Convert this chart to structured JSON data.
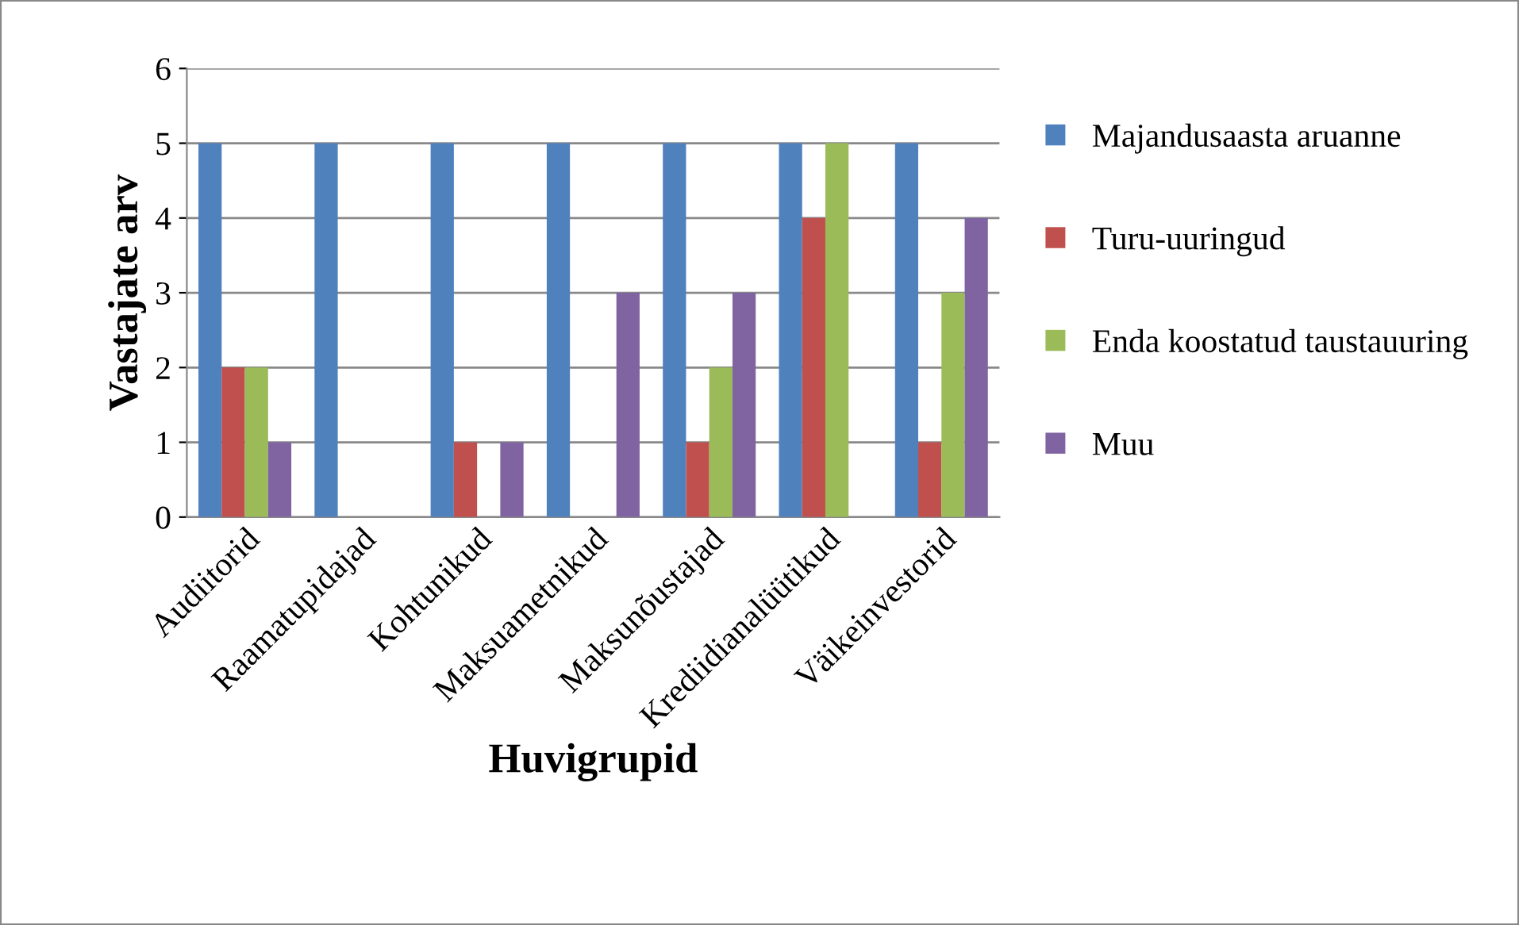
{
  "chart_data": {
    "type": "bar",
    "xlabel": "Huvigrupid",
    "ylabel": "Vastajate arv",
    "categories": [
      "Audiitorid",
      "Raamatupidajad",
      "Kohtunikud",
      "Maksuametnikud",
      "Maksunõustajad",
      "Krediidianalüütikud",
      "Väikeinvestorid"
    ],
    "series": [
      {
        "name": "Majandusaasta aruanne",
        "color": "#4f81bd",
        "values": [
          5,
          5,
          5,
          5,
          5,
          5,
          5
        ]
      },
      {
        "name": "Turu-uuringud",
        "color": "#c0504d",
        "values": [
          2,
          0,
          1,
          0,
          1,
          4,
          1
        ]
      },
      {
        "name": "Enda koostatud taustauuring",
        "color": "#9bbb59",
        "values": [
          2,
          0,
          0,
          0,
          2,
          5,
          3
        ]
      },
      {
        "name": "Muu",
        "color": "#8064a2",
        "values": [
          1,
          0,
          1,
          3,
          3,
          0,
          4
        ]
      }
    ],
    "ylim": [
      0,
      6
    ],
    "yticks": [
      0,
      1,
      2,
      3,
      4,
      5,
      6
    ],
    "grid": "y",
    "legend": "right"
  }
}
